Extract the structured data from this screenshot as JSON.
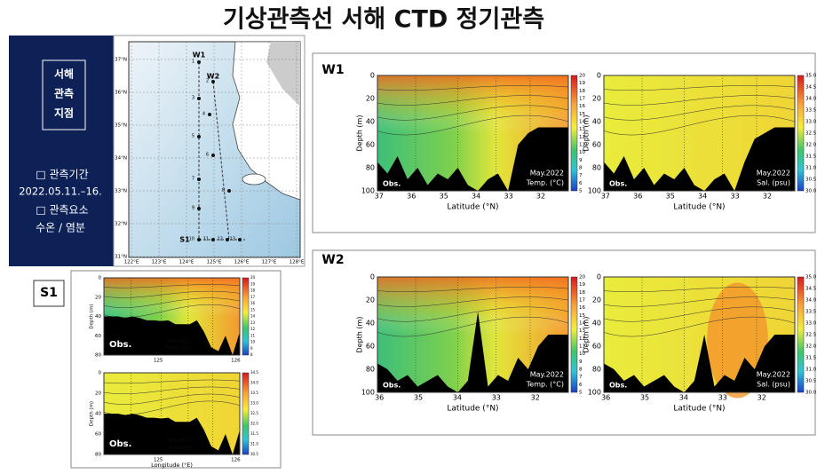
{
  "title": "기상관측선 서해 CTD 정기관측",
  "sidebar": {
    "heading": [
      "서해",
      "관측",
      "지점"
    ],
    "period_label": "□ 관측기간",
    "period": "2022.05.11.–16.",
    "items_label": "□ 관측요소",
    "items": "수온 / 염분"
  },
  "map": {
    "lat_labels": [
      "37°N",
      "36°N",
      "35°N",
      "34°N",
      "33°N",
      "32°N",
      "31°N"
    ],
    "lon_labels": [
      "122°E",
      "123°E",
      "124°E",
      "125°E",
      "126°E",
      "127°E",
      "128°E"
    ],
    "lines": [
      "W1",
      "W2",
      "S1"
    ],
    "stations": [
      "1",
      "2",
      "3",
      "4",
      "5",
      "6",
      "7",
      "8",
      "9",
      "10",
      "11",
      "12",
      "13"
    ]
  },
  "panels": [
    {
      "label": "W1",
      "plots": [
        {
          "ylabel": "Depth (m)",
          "yticks": [
            "0",
            "20",
            "40",
            "60",
            "80",
            "100"
          ],
          "xlabel": "Latitude (°N)",
          "xticks": [
            "37",
            "36",
            "35",
            "34",
            "33",
            "32"
          ],
          "source": "Obs.",
          "date": "May.2022",
          "variable": "Temp. (°C)",
          "colorbar": [
            "20",
            "19",
            "18",
            "17",
            "16",
            "15",
            "14",
            "13",
            "12",
            "11",
            "10",
            "9",
            "8",
            "7",
            "6",
            "5"
          ]
        },
        {
          "ylabel": "Depth (m)",
          "yticks": [
            "0",
            "20",
            "40",
            "60",
            "80",
            "100"
          ],
          "xlabel": "Latitude (°N)",
          "xticks": [
            "37",
            "36",
            "35",
            "34",
            "33",
            "32"
          ],
          "source": "Obs.",
          "date": "May.2022",
          "variable": "Sal. (psu)",
          "colorbar": [
            "35.0",
            "34.5",
            "34.0",
            "33.5",
            "33.0",
            "32.5",
            "32.0",
            "31.5",
            "31.0",
            "30.5",
            "30.0"
          ]
        }
      ]
    },
    {
      "label": "W2",
      "plots": [
        {
          "ylabel": "Depth (m)",
          "yticks": [
            "0",
            "20",
            "40",
            "60",
            "80",
            "100"
          ],
          "xlabel": "Latitude (°N)",
          "xticks": [
            "36",
            "35",
            "34",
            "33",
            "32"
          ],
          "source": "Obs.",
          "date": "May.2022",
          "variable": "Temp. (°C)",
          "colorbar": [
            "20",
            "19",
            "18",
            "17",
            "16",
            "15",
            "14",
            "13",
            "12",
            "11",
            "10",
            "9",
            "8",
            "7",
            "6",
            "5"
          ]
        },
        {
          "ylabel": "Depth (m)",
          "yticks": [
            "0",
            "20",
            "40",
            "60",
            "80",
            "100"
          ],
          "xlabel": "Latitude (°N)",
          "xticks": [
            "36",
            "35",
            "34",
            "33",
            "32"
          ],
          "source": "Obs.",
          "date": "May.2022",
          "variable": "Sal. (psu)",
          "colorbar": [
            "35.0",
            "34.5",
            "34.0",
            "33.5",
            "33.0",
            "32.5",
            "32.0",
            "31.5",
            "31.0",
            "30.5",
            "30.0"
          ]
        }
      ]
    },
    {
      "label": "S1",
      "plots": [
        {
          "ylabel": "Depth (m)",
          "yticks": [
            "0",
            "20",
            "40",
            "60",
            "80"
          ],
          "xticks": [
            "125",
            "126"
          ],
          "source": "Obs.",
          "date": "May.2022",
          "variable": "Temp. (°C)",
          "colorbar": [
            "20",
            "19",
            "18",
            "17",
            "16",
            "15",
            "14",
            "13",
            "12",
            "11",
            "10",
            "9",
            "8"
          ]
        },
        {
          "ylabel": "Depth (m)",
          "yticks": [
            "0",
            "20",
            "40",
            "60",
            "80"
          ],
          "xlabel": "Longitude (°E)",
          "xticks": [
            "125",
            "126"
          ],
          "source": "Obs.",
          "date": "May.2022",
          "variable": "Sal.(psu)",
          "colorbar": [
            "34.5",
            "34.0",
            "33.5",
            "33.0",
            "32.5",
            "32.0",
            "31.5",
            "31.0",
            "30.5"
          ]
        }
      ]
    }
  ]
}
